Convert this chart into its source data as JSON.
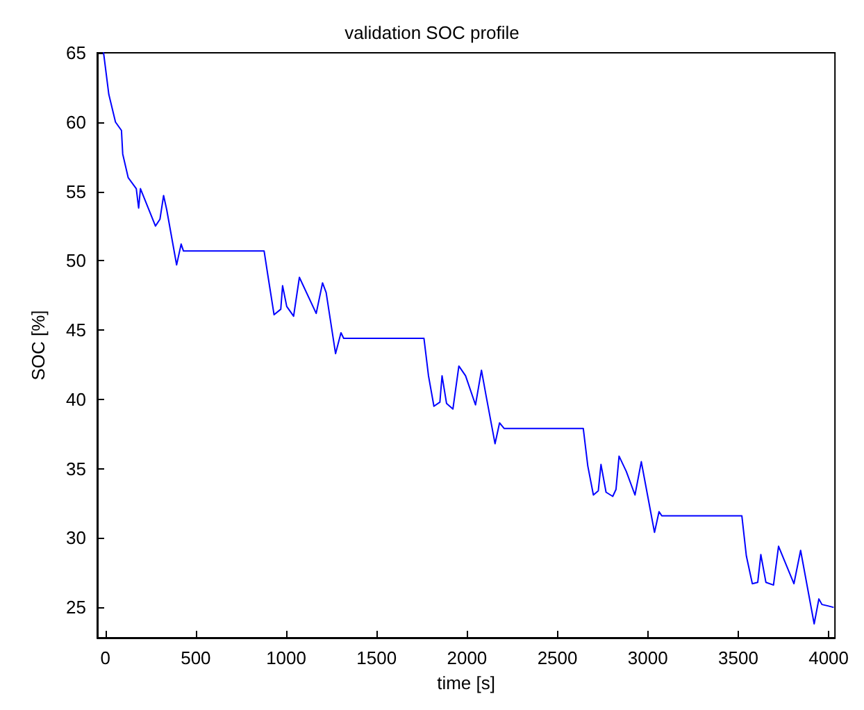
{
  "chart_data": {
    "type": "line",
    "title": "validation SOC profile",
    "xlabel": "time [s]",
    "ylabel": "SOC [%]",
    "xlim": [
      -45,
      4035
    ],
    "ylim": [
      22.8,
      65
    ],
    "xticks": [
      0,
      500,
      1000,
      1500,
      2000,
      2500,
      3000,
      3500,
      4000
    ],
    "yticks": [
      25,
      30,
      35,
      40,
      45,
      50,
      55,
      60,
      65
    ],
    "grid": false,
    "marker": "none",
    "line_style": "solid",
    "series": [
      {
        "color": "#0000ff",
        "x": [
          -10,
          19,
          56,
          89,
          96,
          126,
          171,
          184,
          194,
          277,
          302,
          322,
          339,
          394,
          419,
          432,
          878,
          898,
          933,
          970,
          980,
          1003,
          1041,
          1073,
          1166,
          1201,
          1221,
          1273,
          1303,
          1318,
          1762,
          1787,
          1817,
          1850,
          1862,
          1887,
          1922,
          1955,
          1992,
          2047,
          2080,
          2105,
          2155,
          2180,
          2205,
          2643,
          2668,
          2699,
          2726,
          2741,
          2769,
          2806,
          2824,
          2841,
          2881,
          2929,
          2964,
          2981,
          3037,
          3062,
          3077,
          3520,
          3545,
          3578,
          3608,
          3625,
          3653,
          3695,
          3723,
          3808,
          3845,
          3920,
          3946,
          3963,
          3996,
          4025
        ],
        "values": [
          65,
          62,
          60,
          59.4,
          57.7,
          56,
          55.2,
          53.8,
          55.2,
          52.5,
          53,
          54.7,
          53.7,
          49.7,
          51.2,
          50.7,
          50.7,
          49,
          46.1,
          46.5,
          48.2,
          46.7,
          46,
          48.8,
          46.2,
          48.4,
          47.7,
          43.3,
          44.8,
          44.4,
          44.4,
          41.7,
          39.5,
          39.8,
          41.7,
          39.7,
          39.3,
          42.4,
          41.7,
          39.6,
          42.1,
          40.3,
          36.8,
          38.3,
          37.9,
          37.9,
          35.2,
          33.1,
          33.4,
          35.3,
          33.3,
          33,
          33.5,
          35.9,
          34.8,
          33.1,
          35.5,
          34.3,
          30.4,
          31.9,
          31.6,
          31.6,
          28.7,
          26.7,
          26.8,
          28.8,
          26.8,
          26.6,
          29.4,
          26.7,
          29.1,
          23.8,
          25.6,
          25.2,
          25.1,
          25
        ]
      }
    ]
  }
}
